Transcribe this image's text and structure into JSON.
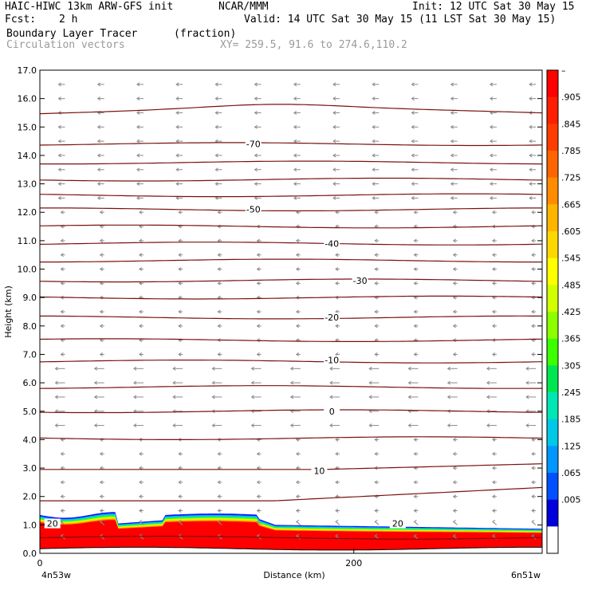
{
  "header": {
    "model": "HAIC-HIWC 13km ARW-GFS init",
    "org": "NCAR/MMM",
    "init": "Init: 12 UTC Sat 30 May 15",
    "fcst_label": "Fcst:",
    "fcst_value": "2 h",
    "valid": "Valid: 14 UTC Sat 30 May 15 (11 LST Sat 30 May 15)",
    "field1": "Boundary Layer Tracer",
    "field1_units": "(fraction)",
    "field2": "Circulation vectors",
    "xy": "XY= 259.5, 91.6 to 274.6,110.2"
  },
  "colors": {
    "contour": "#7a1010",
    "vector": "#8a8a8a",
    "terrain": "#000000"
  },
  "chart_data": {
    "type": "heatmap",
    "ylabel": "Height (km)",
    "xlabel": "Distance (km)",
    "ylim": [
      0,
      17
    ],
    "xlim": [
      0,
      320
    ],
    "yticks": [
      "0.0",
      "1.0",
      "2.0",
      "3.0",
      "4.0",
      "5.0",
      "6.0",
      "7.0",
      "8.0",
      "9.0",
      "10.0",
      "11.0",
      "12.0",
      "13.0",
      "14.0",
      "15.0",
      "16.0",
      "17.0"
    ],
    "xticks": [
      {
        "value": 0,
        "label": "0"
      },
      {
        "value": 200,
        "label": "200"
      }
    ],
    "x_endpoints": {
      "left": "4n53w",
      "right": "6n51w"
    },
    "colorbar": {
      "labels": [
        "–",
        ".905",
        ".845",
        ".785",
        ".725",
        ".665",
        ".605",
        ".545",
        ".485",
        ".425",
        ".365",
        ".305",
        ".245",
        ".185",
        ".125",
        ".065",
        ".005"
      ],
      "colors": [
        "#ff0000",
        "#ff1e00",
        "#ff3c00",
        "#ff6400",
        "#ff8c00",
        "#ffb400",
        "#ffd700",
        "#ffff00",
        "#d2ff00",
        "#8cff00",
        "#3cff00",
        "#00e650",
        "#00e6b4",
        "#00c8e6",
        "#0096ff",
        "#0050ff",
        "#0000dc",
        "#ffffff"
      ]
    },
    "contour_labels": [
      {
        "label": "-70",
        "x": 136,
        "y": 14.4
      },
      {
        "label": "-50",
        "x": 136,
        "y": 12.1
      },
      {
        "label": "-40",
        "x": 186,
        "y": 10.9
      },
      {
        "label": "-30",
        "x": 204,
        "y": 9.6
      },
      {
        "label": "-20",
        "x": 186,
        "y": 8.3
      },
      {
        "label": "-10",
        "x": 186,
        "y": 6.8
      },
      {
        "label": "0",
        "x": 186,
        "y": 5.0
      },
      {
        "label": "10",
        "x": 178,
        "y": 2.9
      },
      {
        "label": "20",
        "x": 8,
        "y": 1.05
      },
      {
        "label": "20",
        "x": 228,
        "y": 1.05
      }
    ]
  }
}
